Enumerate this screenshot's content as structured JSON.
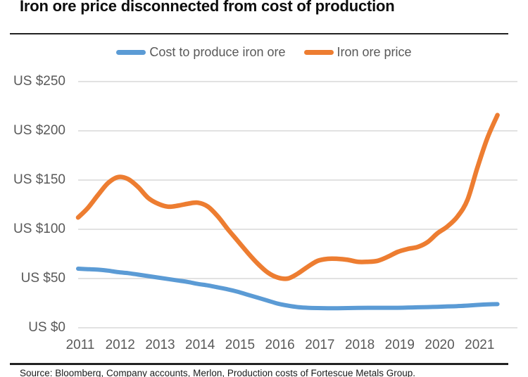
{
  "title": "Iron ore price disconnected from cost of production",
  "source_note": "Source: Bloomberg, Company accounts, Merlon, Production costs of Fortescue Metals Group.",
  "legend": [
    {
      "label": "Cost to produce iron ore",
      "color": "#5B9BD5"
    },
    {
      "label": "Iron ore price",
      "color": "#ED7D31"
    }
  ],
  "colors": {
    "cost_line": "#5B9BD5",
    "price_line": "#ED7D31",
    "gridline": "#D9D9D9",
    "axis_text": "#595959",
    "title_text": "#0d0d0d",
    "divider": "#222222"
  },
  "chart_data": {
    "type": "line",
    "title": "Iron ore price disconnected from cost of production",
    "xlabel": "",
    "ylabel": "US $",
    "grid": "horizontal",
    "legend_position": "top-center",
    "x_axis": {
      "ticks": [
        2011,
        2012,
        2013,
        2014,
        2015,
        2016,
        2017,
        2018,
        2019,
        2020,
        2021
      ],
      "range": [
        2011,
        2022
      ]
    },
    "y_axis": {
      "tick_values": [
        0,
        50,
        100,
        150,
        200,
        250
      ],
      "tick_labels": [
        "US $0",
        "US $50",
        "US $100",
        "US $150",
        "US $200",
        "US $250"
      ],
      "range": [
        0,
        250
      ]
    },
    "series": [
      {
        "name": "Cost to produce iron ore",
        "color": "#5B9BD5",
        "x": [
          2011,
          2011.25,
          2011.5,
          2011.75,
          2012,
          2012.25,
          2012.5,
          2012.75,
          2013,
          2013.25,
          2013.5,
          2013.75,
          2014,
          2014.25,
          2014.5,
          2014.75,
          2015,
          2015.25,
          2015.5,
          2015.75,
          2016,
          2016.25,
          2016.5,
          2016.75,
          2017,
          2017.25,
          2017.5,
          2017.75,
          2018,
          2018.25,
          2018.5,
          2018.75,
          2019,
          2019.25,
          2019.5,
          2019.75,
          2020,
          2020.25,
          2020.5,
          2020.75,
          2021,
          2021.25,
          2021.5
        ],
        "values": [
          60,
          59.5,
          59,
          58,
          56.5,
          55.5,
          54,
          52.5,
          51,
          49.5,
          48,
          46.5,
          44.5,
          43,
          41,
          39,
          36.5,
          33.5,
          30.5,
          27.5,
          24.5,
          22.5,
          21,
          20.3,
          20,
          19.8,
          19.8,
          20,
          20.2,
          20.3,
          20.3,
          20.3,
          20.3,
          20.5,
          20.8,
          21,
          21.3,
          21.7,
          22,
          22.5,
          23.2,
          23.8,
          24
        ]
      },
      {
        "name": "Iron ore price",
        "color": "#ED7D31",
        "x": [
          2011,
          2011.25,
          2011.5,
          2011.75,
          2012,
          2012.25,
          2012.5,
          2012.75,
          2013,
          2013.25,
          2013.5,
          2013.75,
          2014,
          2014.25,
          2014.5,
          2014.75,
          2015,
          2015.25,
          2015.5,
          2015.75,
          2016,
          2016.25,
          2016.5,
          2016.75,
          2017,
          2017.25,
          2017.5,
          2017.75,
          2018,
          2018.25,
          2018.5,
          2018.75,
          2019,
          2019.25,
          2019.5,
          2019.75,
          2020,
          2020.25,
          2020.5,
          2020.75,
          2021,
          2021.25,
          2021.5
        ],
        "values": [
          112,
          122,
          135,
          147,
          153,
          151,
          143,
          132,
          126,
          123,
          124,
          126,
          127,
          123,
          113,
          100,
          88,
          76,
          65,
          56,
          51,
          50,
          55,
          62,
          68,
          70,
          70,
          69,
          67,
          67,
          68,
          72,
          77,
          80,
          82,
          87,
          96,
          103,
          113,
          130,
          163,
          193,
          216
        ]
      }
    ]
  }
}
